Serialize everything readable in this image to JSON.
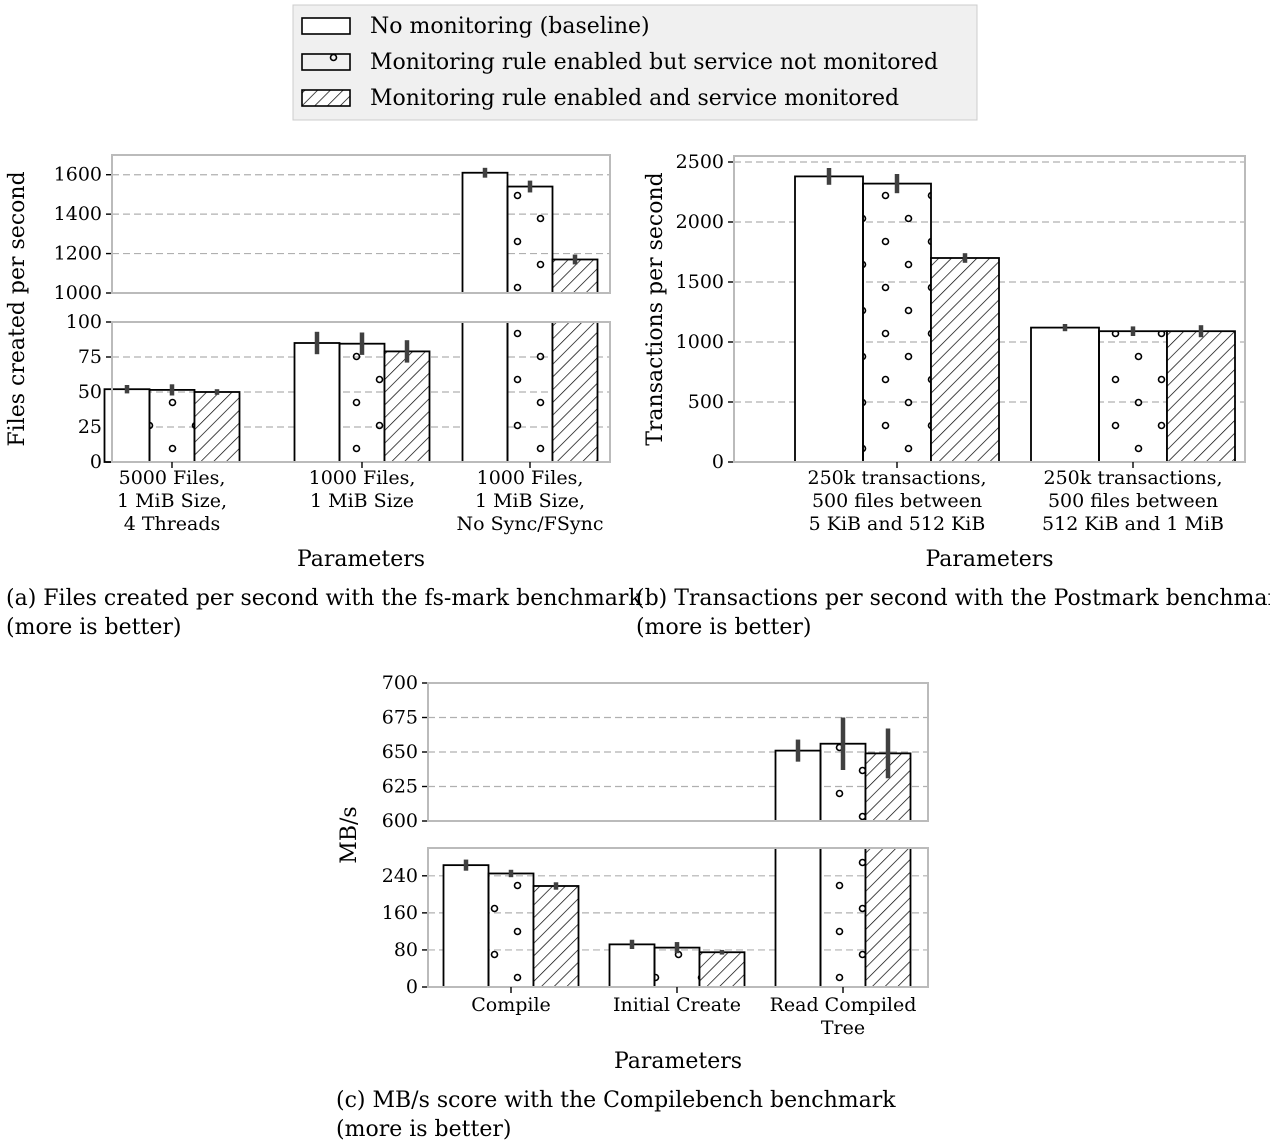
{
  "legend": {
    "entries": [
      {
        "label": "No monitoring (baseline)",
        "pattern": "none"
      },
      {
        "label": "Monitoring rule enabled but service not monitored",
        "pattern": "dots"
      },
      {
        "label": "Monitoring rule enabled and service monitored",
        "pattern": "hatch"
      }
    ]
  },
  "colors": {
    "bar_edge": "#000000",
    "bar_fill": "#ffffff",
    "error_bar": "#404040",
    "grid": "#b0b0b0",
    "axes_frame": "#bbbbbb",
    "legend_bg": "#f0f0f0"
  },
  "chart_data": [
    {
      "id": "a",
      "type": "bar",
      "broken_axis": true,
      "caption": "(a) Files created per second with the fs-mark benchmark (more is better)",
      "xlabel": "Parameters",
      "ylabel": "Files created per second",
      "categories": [
        [
          "5000 Files,",
          "1 MiB Size,",
          "4 Threads"
        ],
        [
          "1000 Files,",
          "1 MiB Size"
        ],
        [
          "1000 Files,",
          "1 MiB Size,",
          "No Sync/FSync"
        ]
      ],
      "ylim_upper": [
        1000,
        1700
      ],
      "yticks_upper": [
        1000,
        1200,
        1400,
        1600
      ],
      "ylim_lower": [
        0,
        100
      ],
      "yticks_lower": [
        0,
        25,
        50,
        75,
        100
      ],
      "grid": true,
      "series": [
        {
          "values": [
            52,
            85,
            1610
          ],
          "errors": [
            3,
            8,
            25
          ]
        },
        {
          "values": [
            51.5,
            84.5,
            1540
          ],
          "errors": [
            4,
            8,
            30
          ]
        },
        {
          "values": [
            50,
            79,
            1170
          ],
          "errors": [
            2,
            8,
            25
          ]
        }
      ]
    },
    {
      "id": "b",
      "type": "bar",
      "broken_axis": false,
      "caption": "(b) Transactions per second with the Postmark benchmark (more is better)",
      "xlabel": "Parameters",
      "ylabel": "Transactions per second",
      "categories": [
        [
          "250k transactions,",
          "500 files between",
          "5 KiB and 512 KiB"
        ],
        [
          "250k transactions,",
          "500 files between",
          "512 KiB and 1 MiB"
        ]
      ],
      "ylim": [
        0,
        2550
      ],
      "yticks": [
        0,
        500,
        1000,
        1500,
        2000,
        2500
      ],
      "grid": true,
      "series": [
        {
          "values": [
            2380,
            1120
          ],
          "errors": [
            70,
            30
          ]
        },
        {
          "values": [
            2320,
            1090
          ],
          "errors": [
            80,
            40
          ]
        },
        {
          "values": [
            1700,
            1090
          ],
          "errors": [
            40,
            50
          ]
        }
      ]
    },
    {
      "id": "c",
      "type": "bar",
      "broken_axis": true,
      "caption": "(c) MB/s score with the Compilebench benchmark (more is better)",
      "xlabel": "Parameters",
      "ylabel": "MB/s",
      "categories": [
        [
          "Compile"
        ],
        [
          "Initial Create"
        ],
        [
          "Read Compiled",
          "Tree"
        ]
      ],
      "ylim_upper": [
        600,
        700
      ],
      "yticks_upper": [
        600,
        625,
        650,
        675,
        700
      ],
      "ylim_lower": [
        0,
        300
      ],
      "yticks_lower": [
        0,
        80,
        160,
        240
      ],
      "grid": true,
      "series": [
        {
          "values": [
            263,
            92,
            651
          ],
          "errors": [
            12,
            10,
            8
          ]
        },
        {
          "values": [
            245,
            85,
            656
          ],
          "errors": [
            8,
            12,
            19
          ]
        },
        {
          "values": [
            218,
            75,
            649
          ],
          "errors": [
            8,
            5,
            18
          ]
        }
      ]
    }
  ]
}
